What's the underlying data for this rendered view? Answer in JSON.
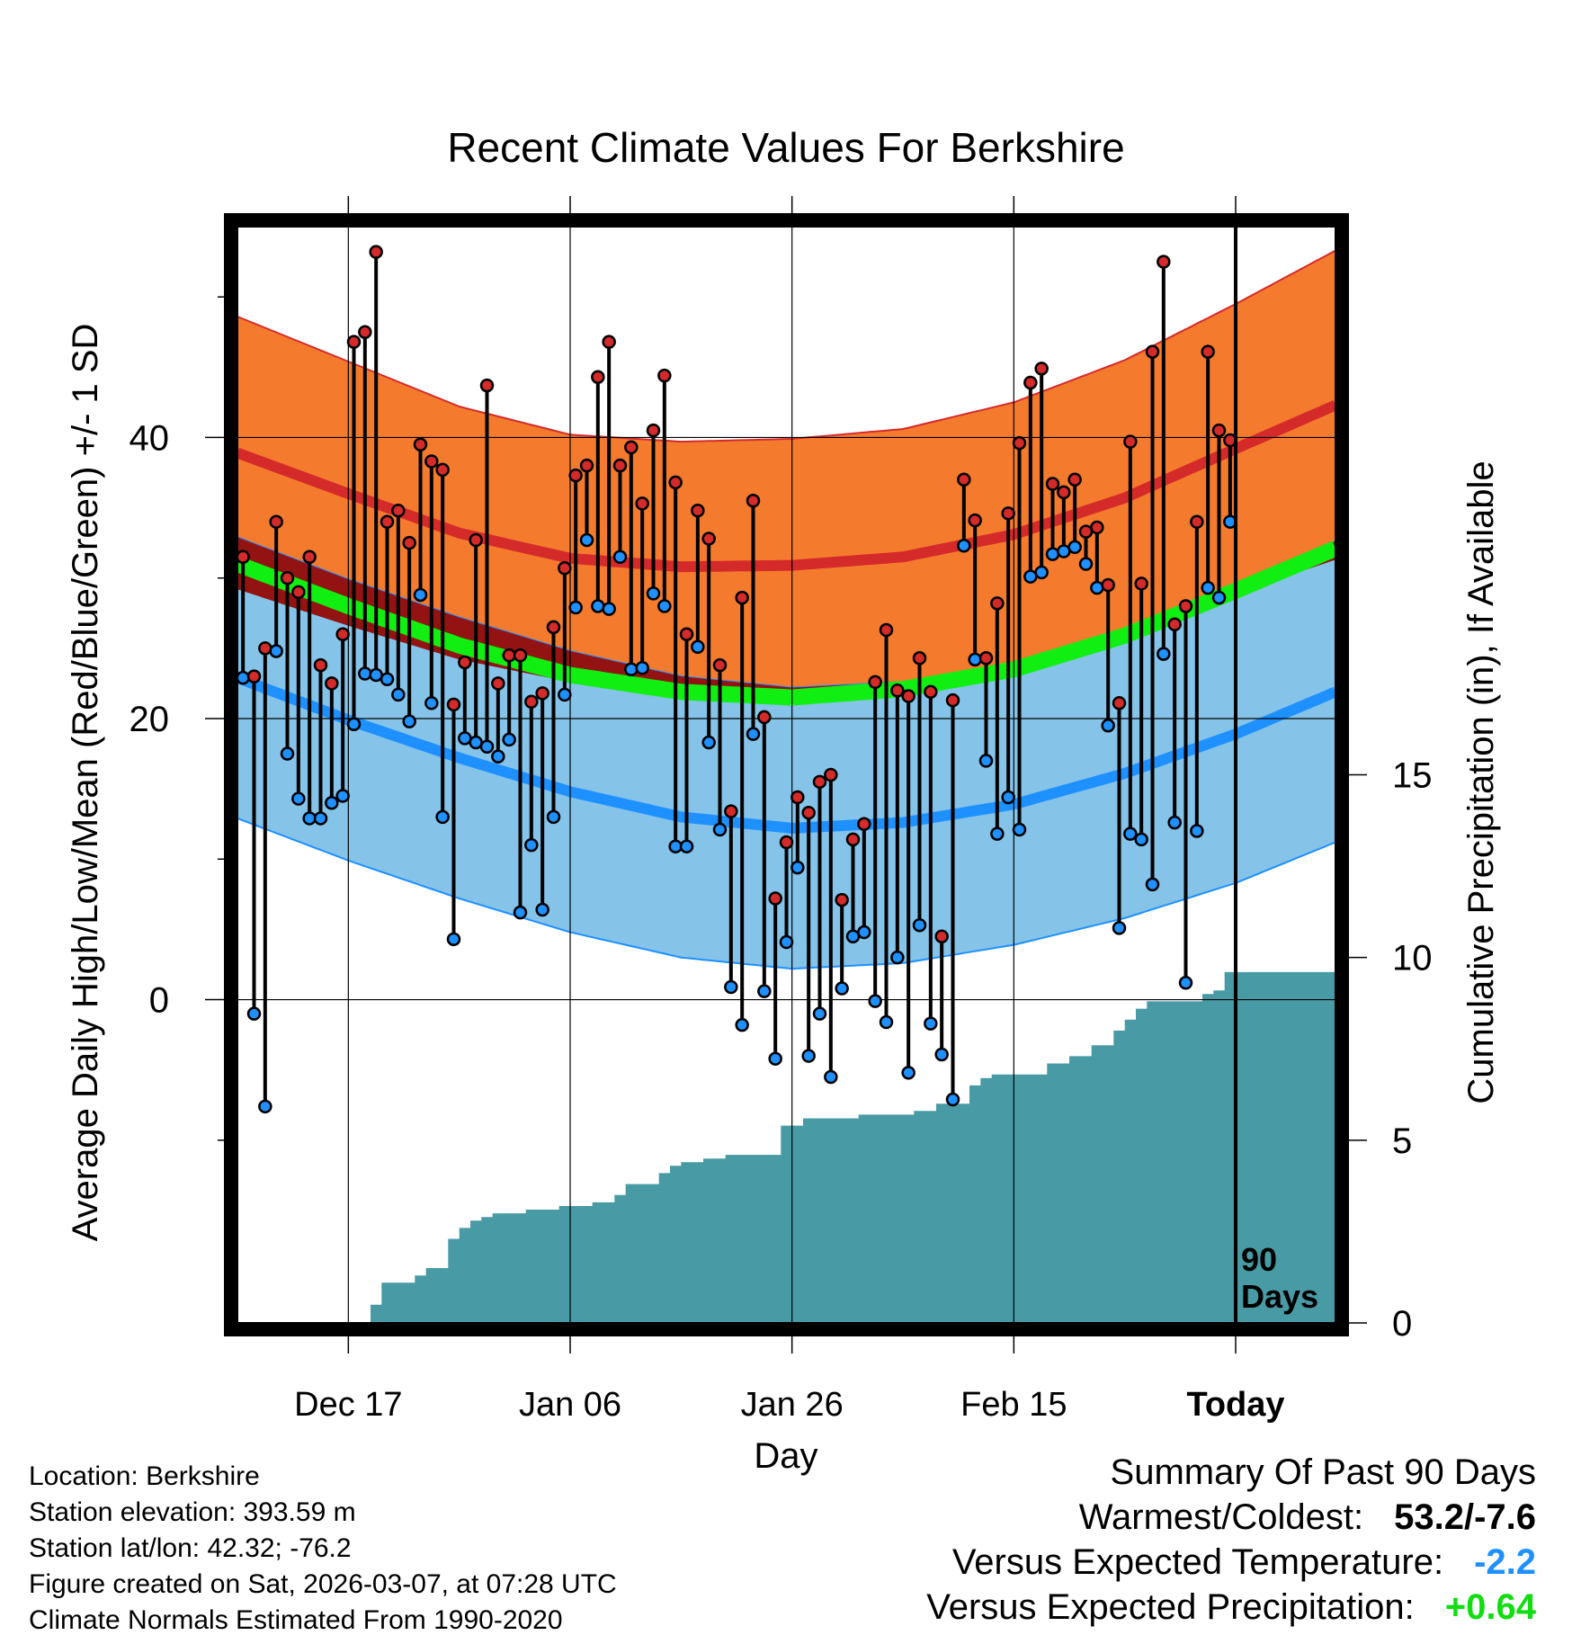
{
  "chart_data": {
    "type": "climate-daily-range",
    "title": "Recent Climate Values For Berkshire",
    "xlabel": "Day",
    "ylabel_left": "Average Daily High/Low/Mean (Red/Blue/Green) +/- 1 SD",
    "ylabel_right": "Cumulative Precipitation (in), If Available",
    "x_tick_labels": [
      "Dec 17",
      "Jan 06",
      "Jan 26",
      "Feb 15",
      "Today"
    ],
    "x_tick_days": [
      10,
      30,
      50,
      70,
      90
    ],
    "ylim_left": [
      -23,
      55
    ],
    "yticks_left": [
      0,
      20,
      40
    ],
    "ylim_right": [
      0,
      30
    ],
    "yticks_right": [
      0,
      5,
      10,
      15
    ],
    "x_range_days": [
      0,
      99
    ],
    "today_day": 90,
    "today_label_line1": "90",
    "today_label_line2": "Days",
    "colors": {
      "high_band": "#f47b2e",
      "high_mean": "#d52a2a",
      "low_band": "#85c3e9",
      "low_mean": "#1e90ff",
      "overlap": "#931212",
      "mean_line": "#11ee11",
      "precip": "#489aa4",
      "high_point": "#d52a2a",
      "low_point": "#1e90ff"
    },
    "normals": {
      "days": [
        0,
        10,
        20,
        30,
        40,
        50,
        60,
        70,
        80,
        90,
        99
      ],
      "high_mean": [
        38.9,
        36.0,
        33.2,
        31.4,
        30.8,
        30.9,
        31.5,
        33.1,
        35.7,
        39.2,
        42.3
      ],
      "high_sd": [
        9.7,
        9.4,
        9.0,
        8.8,
        8.9,
        9.0,
        9.1,
        9.4,
        9.8,
        10.3,
        11.0
      ],
      "low_mean": [
        22.9,
        19.9,
        17.2,
        14.8,
        13.0,
        12.2,
        12.6,
        13.9,
        16.1,
        18.9,
        21.9
      ],
      "low_sd": [
        10.0,
        10.0,
        10.0,
        10.0,
        10.0,
        10.0,
        10.0,
        10.0,
        10.3,
        10.6,
        10.7
      ],
      "mean": [
        31.0,
        28.0,
        25.2,
        23.1,
        21.9,
        21.5,
        22.1,
        23.5,
        25.9,
        29.1,
        32.1
      ]
    },
    "daily": {
      "high": [
        31.5,
        23.0,
        25.0,
        34.0,
        30.0,
        29.0,
        31.5,
        23.8,
        22.5,
        26.0,
        46.8,
        47.5,
        53.2,
        34.0,
        34.8,
        32.5,
        39.5,
        38.3,
        37.7,
        21.0,
        24.0,
        32.7,
        43.7,
        22.5,
        24.5,
        24.5,
        21.2,
        21.8,
        26.5,
        30.7,
        37.3,
        38.0,
        44.3,
        46.8,
        38.0,
        39.3,
        35.3,
        40.5,
        44.4,
        36.8,
        26.0,
        34.8,
        32.8,
        23.8,
        13.4,
        28.6,
        35.5,
        20.1,
        7.2,
        11.2,
        14.4,
        13.3,
        15.5,
        16.0,
        7.1,
        11.4,
        12.5,
        22.6,
        26.3,
        22.0,
        21.6,
        24.3,
        21.9,
        4.5,
        21.3,
        37.0,
        34.1,
        24.3,
        28.2,
        34.6,
        39.6,
        43.9,
        44.9,
        36.7,
        36.1,
        37.0,
        33.3,
        33.6,
        29.5,
        21.1,
        39.7,
        29.6,
        46.1,
        52.5,
        26.7,
        28.0,
        34.0,
        46.1,
        40.5,
        39.8
      ],
      "low": [
        22.9,
        -1.0,
        -7.6,
        24.8,
        17.5,
        14.3,
        12.9,
        12.9,
        14.0,
        14.5,
        19.6,
        23.2,
        23.1,
        22.8,
        21.7,
        19.8,
        28.8,
        21.1,
        13.0,
        4.3,
        18.6,
        18.3,
        18.0,
        17.3,
        18.5,
        6.2,
        11.0,
        6.4,
        13.0,
        21.7,
        27.9,
        32.7,
        28.0,
        27.8,
        31.5,
        23.5,
        23.6,
        28.9,
        28.0,
        10.9,
        10.9,
        25.1,
        18.3,
        12.1,
        0.9,
        -1.8,
        18.9,
        0.6,
        -4.2,
        4.1,
        9.4,
        -4.0,
        -1.0,
        -5.5,
        0.8,
        4.5,
        4.8,
        -0.1,
        -1.6,
        3.0,
        -5.2,
        5.3,
        -1.7,
        -3.9,
        -7.1,
        32.3,
        24.2,
        17.0,
        11.8,
        14.4,
        12.1,
        30.1,
        30.4,
        31.7,
        31.9,
        32.2,
        31.0,
        29.3,
        19.5,
        5.1,
        11.8,
        11.4,
        8.2,
        24.6,
        12.6,
        1.2,
        12.0,
        29.3,
        28.6,
        34.0
      ]
    },
    "precip_cumulative": [
      0.0,
      0.0,
      0.0,
      0.0,
      0.0,
      0.0,
      0.0,
      0.0,
      0.0,
      0.0,
      0.0,
      0.0,
      0.5,
      1.1,
      1.1,
      1.1,
      1.3,
      1.5,
      1.5,
      2.3,
      2.6,
      2.8,
      2.9,
      3.0,
      3.0,
      3.0,
      3.1,
      3.1,
      3.1,
      3.2,
      3.2,
      3.2,
      3.3,
      3.3,
      3.5,
      3.8,
      3.8,
      3.8,
      4.1,
      4.3,
      4.4,
      4.4,
      4.5,
      4.5,
      4.6,
      4.6,
      4.6,
      4.6,
      4.6,
      5.4,
      5.4,
      5.6,
      5.6,
      5.6,
      5.6,
      5.6,
      5.7,
      5.7,
      5.7,
      5.7,
      5.7,
      5.8,
      5.8,
      6.0,
      6.0,
      6.0,
      6.5,
      6.7,
      6.8,
      6.8,
      6.8,
      6.8,
      6.8,
      7.1,
      7.1,
      7.3,
      7.3,
      7.6,
      7.6,
      8.0,
      8.3,
      8.6,
      8.8,
      8.8,
      8.8,
      8.8,
      8.8,
      9.0,
      9.1,
      9.6,
      9.6,
      9.6,
      9.6,
      9.6,
      9.6,
      9.6,
      9.6,
      9.6,
      9.6,
      9.6
    ]
  },
  "info": {
    "location": "Location: Berkshire",
    "elevation": "Station elevation: 393.59 m",
    "latlon": "Station lat/lon: 42.32; -76.2",
    "created": "Figure created on Sat, 2026-03-07, at 07:28 UTC",
    "normals": "Climate Normals Estimated From 1990-2020"
  },
  "summary": {
    "title": "Summary Of Past 90 Days",
    "warm_label": "Warmest/Coldest:",
    "warm_value": "53.2/-7.6",
    "temp_label": "Versus Expected Temperature:",
    "temp_value": "-2.2",
    "precip_label": "Versus Expected Precipitation:",
    "precip_value": "+0.64"
  }
}
